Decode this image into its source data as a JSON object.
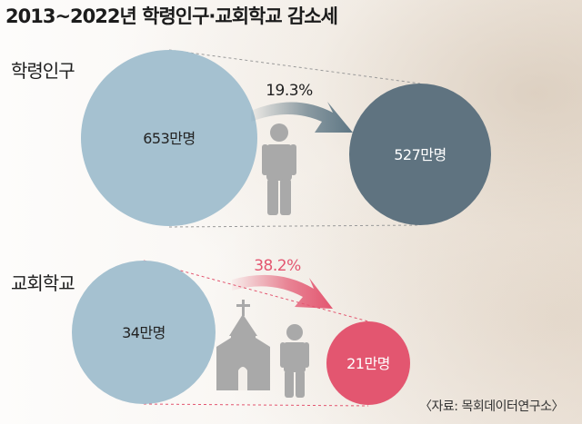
{
  "title": "2013~2022년 학령인구·교회학교 감소세",
  "source": "〈자료: 목회데이터연구소〉",
  "colors": {
    "before_circle": "#a5c1d0",
    "pop_after_circle": "#5f7380",
    "church_after_circle": "#e35670",
    "pop_arrow": "#5d7684",
    "church_arrow": "#e35670",
    "icon": "#a9a9a9"
  },
  "chart_data": [
    {
      "type": "bubble-comparison",
      "name": "학령인구",
      "before": {
        "value": 653,
        "label": "653만명"
      },
      "after": {
        "value": 527,
        "label": "527만명"
      },
      "decrease_pct": 19.3,
      "decrease_label": "19.3%",
      "icon": "person-icon"
    },
    {
      "type": "bubble-comparison",
      "name": "교회학교",
      "before": {
        "value": 34,
        "label": "34만명"
      },
      "after": {
        "value": 21,
        "label": "21만명"
      },
      "decrease_pct": 38.2,
      "decrease_label": "38.2%",
      "icon": "church-icon"
    }
  ]
}
